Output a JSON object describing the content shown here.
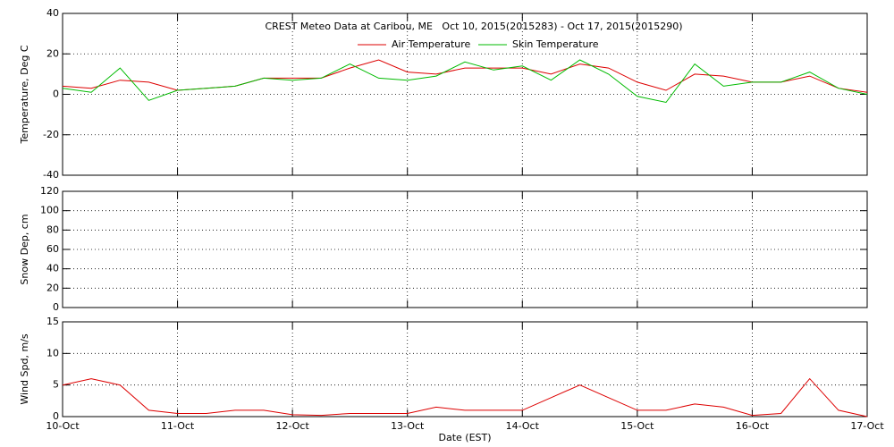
{
  "chart_data": [
    {
      "type": "line",
      "title": "CREST Meteo Data at Caribou, ME   Oct 10, 2015(2015283) - Oct 17, 2015(2015290)",
      "ylabel": "Temperature, Deg C",
      "x": [
        10,
        10.25,
        10.5,
        10.75,
        11,
        11.25,
        11.5,
        11.75,
        12,
        12.25,
        12.5,
        12.75,
        13,
        13.25,
        13.5,
        13.75,
        14,
        14.25,
        14.5,
        14.75,
        15,
        15.25,
        15.5,
        15.75,
        16,
        16.25,
        16.5,
        16.75,
        17
      ],
      "series": [
        {
          "name": "Air Temperature",
          "color": "#dd0000",
          "values": [
            4,
            3,
            7,
            6,
            2,
            3,
            4,
            8,
            8,
            8,
            13,
            17,
            11,
            10,
            13,
            13,
            13,
            10,
            15,
            13,
            6,
            2,
            10,
            9,
            6,
            6,
            9,
            3,
            1
          ]
        },
        {
          "name": "Skin Temperature",
          "color": "#00bb00",
          "values": [
            3,
            1,
            13,
            -3,
            2,
            3,
            4,
            8,
            7,
            8,
            15,
            8,
            7,
            9,
            16,
            12,
            14,
            7,
            17,
            10,
            -1,
            -4,
            15,
            4,
            6,
            6,
            11,
            3,
            0
          ]
        }
      ],
      "xlim": [
        10,
        17
      ],
      "ylim": [
        -40,
        40
      ],
      "yticks": [
        -40,
        -20,
        0,
        20,
        40
      ],
      "grid": true
    },
    {
      "type": "line",
      "ylabel": "Snow Dep, cm",
      "xlim": [
        10,
        17
      ],
      "ylim": [
        0,
        120
      ],
      "yticks": [
        0,
        20,
        40,
        60,
        80,
        100,
        120
      ],
      "grid": true
    },
    {
      "type": "line",
      "ylabel": "Wind Spd, m/s",
      "xlabel": "Date (EST)",
      "x": [
        10,
        10.25,
        10.5,
        10.75,
        11,
        11.25,
        11.5,
        11.75,
        12,
        12.25,
        12.5,
        12.75,
        13,
        13.25,
        13.5,
        13.75,
        14,
        14.25,
        14.5,
        14.75,
        15,
        15.25,
        15.5,
        15.75,
        16,
        16.25,
        16.5,
        16.75,
        17
      ],
      "series": [
        {
          "color": "#dd0000",
          "values": [
            5,
            6,
            5,
            1,
            0.5,
            0.5,
            1,
            1,
            0.3,
            0.2,
            0.5,
            0.5,
            0.5,
            1.5,
            1,
            1,
            1,
            3,
            5,
            3,
            1,
            1,
            2,
            1.5,
            0.2,
            0.5,
            6,
            1,
            0
          ]
        }
      ],
      "xlim": [
        10,
        17
      ],
      "ylim": [
        0,
        15
      ],
      "yticks": [
        0,
        5,
        10,
        15
      ],
      "xticks": [
        {
          "value": 10,
          "label": "10-Oct"
        },
        {
          "value": 11,
          "label": "11-Oct"
        },
        {
          "value": 12,
          "label": "12-Oct"
        },
        {
          "value": 13,
          "label": "13-Oct"
        },
        {
          "value": 14,
          "label": "14-Oct"
        },
        {
          "value": 15,
          "label": "15-Oct"
        },
        {
          "value": 16,
          "label": "16-Oct"
        },
        {
          "value": 17,
          "label": "17-Oct"
        }
      ],
      "grid": true
    }
  ]
}
